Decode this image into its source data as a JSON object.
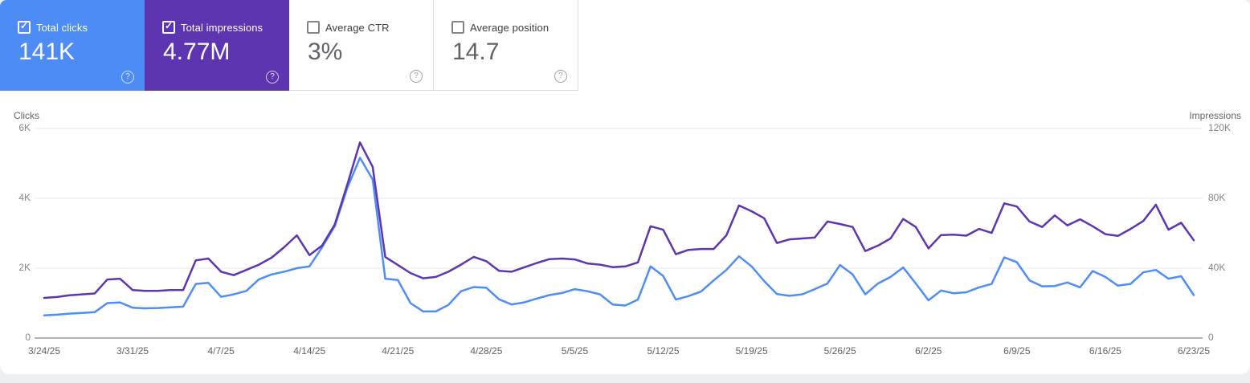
{
  "cards": [
    {
      "label": "Total clicks",
      "value": "141K",
      "checked": true,
      "color": "#4d8bf5"
    },
    {
      "label": "Total impressions",
      "value": "4.77M",
      "checked": true,
      "color": "#5e35b1"
    },
    {
      "label": "Average CTR",
      "value": "3%",
      "checked": false
    },
    {
      "label": "Average position",
      "value": "14.7",
      "checked": false
    }
  ],
  "colors": {
    "clicks_accent": "#4d8bf5",
    "impressions_accent": "#5e35b1",
    "gridline": "#e8eaed",
    "zero_line": "#b0b4b8",
    "tick_text": "#80868b"
  },
  "chart_data": {
    "type": "line",
    "x_start": "3/24/25",
    "x_end": "6/23/25",
    "x_interval": "daily",
    "x_count": 92,
    "x_tick_labels": [
      "3/24/25",
      "3/31/25",
      "4/7/25",
      "4/14/25",
      "4/21/25",
      "4/28/25",
      "5/5/25",
      "5/12/25",
      "5/19/25",
      "5/26/25",
      "6/2/25",
      "6/9/25",
      "6/16/25",
      "6/23/25"
    ],
    "left_axis": {
      "label": "Clicks",
      "max": 6000,
      "ticks": [
        "0",
        "2K",
        "4K",
        "6K"
      ]
    },
    "right_axis": {
      "label": "Impressions",
      "max": 120000,
      "ticks": [
        "0",
        "40K",
        "80K",
        "120K"
      ]
    },
    "grid": true,
    "legend": "none (metric cards act as legend)",
    "series": [
      {
        "name": "Clicks",
        "axis": "left",
        "color": "#4e8df5",
        "values": [
          650,
          670,
          700,
          720,
          740,
          1000,
          1020,
          870,
          850,
          860,
          880,
          900,
          1550,
          1580,
          1180,
          1250,
          1350,
          1680,
          1820,
          1900,
          2000,
          2050,
          2600,
          3200,
          4300,
          5160,
          4540,
          1700,
          1660,
          1000,
          760,
          760,
          950,
          1340,
          1460,
          1440,
          1110,
          960,
          1020,
          1130,
          1230,
          1290,
          1400,
          1340,
          1250,
          960,
          930,
          1100,
          2050,
          1780,
          1100,
          1200,
          1330,
          1650,
          1950,
          2340,
          2050,
          1630,
          1260,
          1210,
          1250,
          1400,
          1560,
          2090,
          1820,
          1250,
          1560,
          1750,
          2020,
          1560,
          1080,
          1360,
          1280,
          1310,
          1450,
          1550,
          2310,
          2170,
          1650,
          1480,
          1490,
          1590,
          1450,
          1920,
          1750,
          1500,
          1550,
          1880,
          1950,
          1700,
          1770,
          1230
        ]
      },
      {
        "name": "Impressions",
        "axis": "right",
        "color": "#5e35b1",
        "values": [
          23000,
          23500,
          24500,
          25000,
          25500,
          33500,
          34000,
          27500,
          27000,
          27000,
          27500,
          27500,
          44500,
          45500,
          38000,
          36000,
          39000,
          42000,
          46000,
          52000,
          58800,
          47500,
          53000,
          65000,
          88000,
          112000,
          98000,
          46400,
          41800,
          37200,
          34200,
          35000,
          38000,
          42000,
          46500,
          44000,
          38500,
          38000,
          40500,
          43000,
          45200,
          45500,
          45000,
          42700,
          42000,
          40600,
          41000,
          43300,
          64000,
          62000,
          48000,
          50500,
          51000,
          51000,
          58800,
          75900,
          72600,
          68600,
          54400,
          56500,
          57000,
          57500,
          66700,
          65300,
          63600,
          49800,
          52900,
          57000,
          68200,
          63600,
          51300,
          59000,
          59200,
          58600,
          62500,
          60200,
          77100,
          75300,
          66700,
          63600,
          70200,
          64500,
          68000,
          64000,
          59500,
          58500,
          62500,
          67000,
          76300,
          62000,
          66000,
          56000
        ]
      }
    ]
  }
}
